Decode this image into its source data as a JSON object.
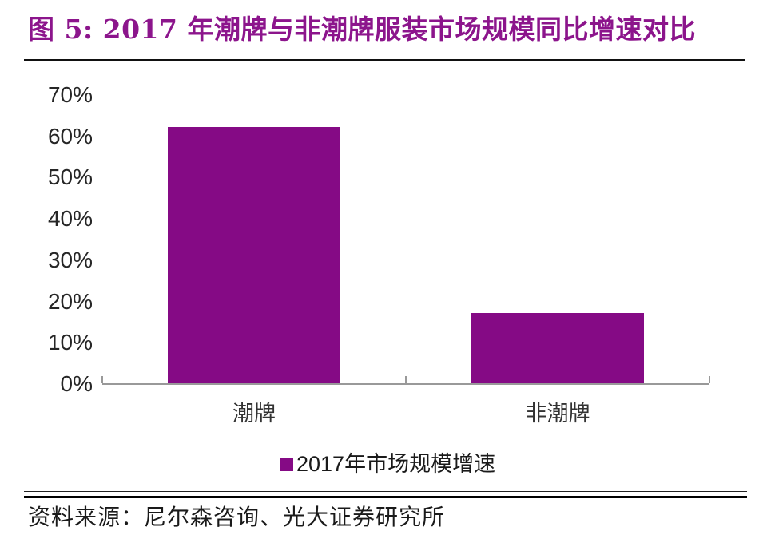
{
  "figure": {
    "title": "图 5: 2017 年潮牌与非潮牌服装市场规模同比增速对比",
    "source_note": "资料来源：尼尔森咨询、光大证券研究所"
  },
  "colors": {
    "title_purple": "#8C158C",
    "bar_purple": "#850A85",
    "axis_gray": "#999999",
    "text_dark": "#262626"
  },
  "chart_data": {
    "type": "bar",
    "categories": [
      "潮牌",
      "非潮牌"
    ],
    "values": [
      62,
      17
    ],
    "series_name": "2017年市场规模增速",
    "title": "2017 年潮牌与非潮牌服装市场规模同比增速对比",
    "xlabel": "",
    "ylabel": "",
    "ylim": [
      0,
      70
    ],
    "ytick_step": 10,
    "ytick_labels": [
      "0%",
      "10%",
      "20%",
      "30%",
      "40%",
      "50%",
      "60%",
      "70%"
    ],
    "grid": false,
    "legend_position": "bottom",
    "legend_entries": [
      "2017年市场规模增速"
    ]
  },
  "legend": {
    "label": "2017年市场规模增速"
  }
}
